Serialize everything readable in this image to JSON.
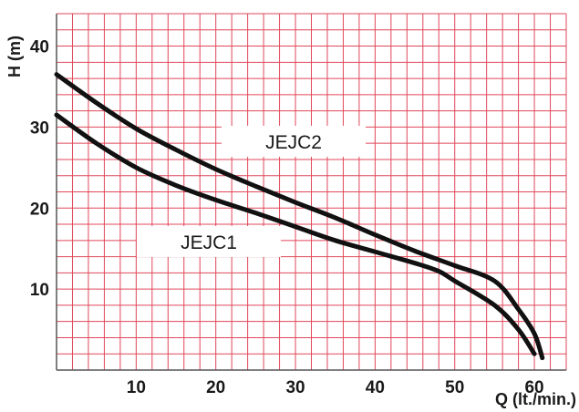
{
  "chart_data": {
    "type": "line",
    "title": "",
    "xlabel": "Q (lt./min.)",
    "ylabel": "H (m)",
    "xlim": [
      0,
      64
    ],
    "ylim": [
      0,
      44
    ],
    "x_ticks": [
      10,
      20,
      30,
      40,
      50,
      60
    ],
    "y_ticks": [
      10,
      20,
      30,
      40
    ],
    "grid": true,
    "colors": {
      "grid": "#e0475a",
      "curve": "#111111",
      "axis": "#555555"
    },
    "series": [
      {
        "name": "JEJC2",
        "x": [
          0,
          5,
          10,
          15,
          20,
          25,
          30,
          35,
          40,
          45,
          50,
          55,
          58,
          60,
          61
        ],
        "y": [
          36.5,
          33,
          29.8,
          27.2,
          24.8,
          22.7,
          20.7,
          18.8,
          16.7,
          14.7,
          12.9,
          11,
          7.5,
          4.5,
          1.5
        ]
      },
      {
        "name": "JEJC1",
        "x": [
          0,
          5,
          10,
          15,
          20,
          25,
          30,
          35,
          40,
          45,
          48,
          50,
          55,
          58,
          60
        ],
        "y": [
          31.5,
          28,
          25,
          22.8,
          21,
          19.4,
          17.7,
          16,
          14.6,
          13.2,
          12.2,
          11,
          8,
          5,
          2
        ]
      }
    ]
  }
}
